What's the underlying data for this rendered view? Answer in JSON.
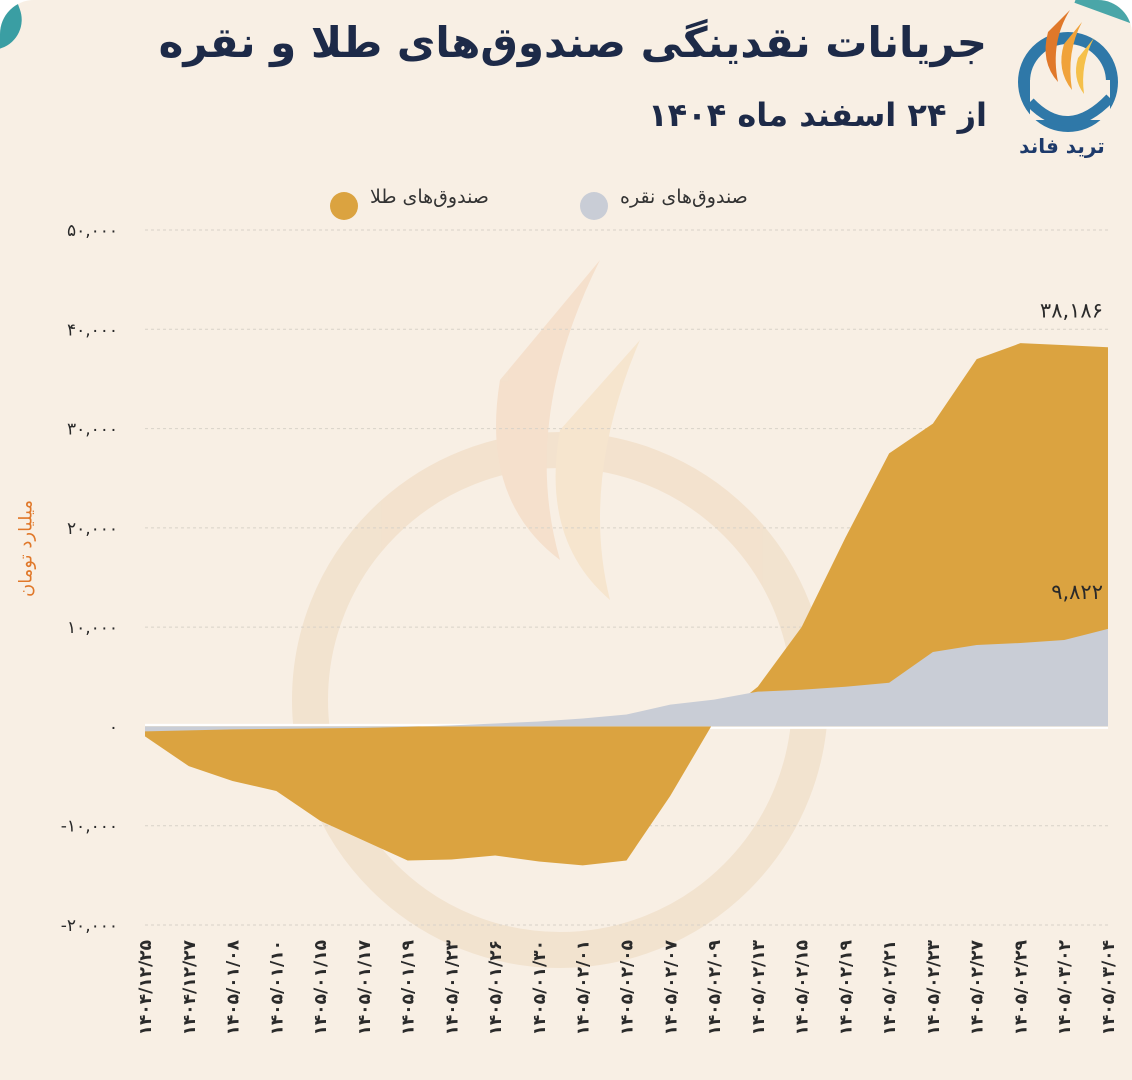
{
  "title": "جریانات نقدینگی صندوق‌های طلا و نقره",
  "subtitle": "از ۲۴ اسفند ماه ۱۴۰۴",
  "brand": "ترید فاند",
  "colors": {
    "gold": "#dba340",
    "silver": "#c9cdd6",
    "title": "#1d2a48",
    "accent": "#e0782a"
  },
  "legend": {
    "gold_label": "صندوق‌های طلا",
    "silver_label": "صندوق‌های نقره"
  },
  "chart_data": {
    "type": "area",
    "ylabel": "میلیارد تومان",
    "ylim": [
      -20000,
      50000
    ],
    "yticks": [
      {
        "value": 50000,
        "label": "۵۰,۰۰۰"
      },
      {
        "value": 40000,
        "label": "۴۰,۰۰۰"
      },
      {
        "value": 30000,
        "label": "۳۰,۰۰۰"
      },
      {
        "value": 20000,
        "label": "۲۰,۰۰۰"
      },
      {
        "value": 10000,
        "label": "۱۰,۰۰۰"
      },
      {
        "value": 0,
        "label": "۰"
      },
      {
        "value": -10000,
        "label": "-۱۰,۰۰۰"
      },
      {
        "value": -20000,
        "label": "-۲۰,۰۰۰"
      }
    ],
    "categories": [
      "۱۴۰۴/۱۲/۲۵",
      "۱۴۰۴/۱۲/۲۷",
      "۱۴۰۵/۰۱/۰۸",
      "۱۴۰۵/۰۱/۱۰",
      "۱۴۰۵/۰۱/۱۵",
      "۱۴۰۵/۰۱/۱۷",
      "۱۴۰۵/۰۱/۱۹",
      "۱۴۰۵/۰۱/۲۳",
      "۱۴۰۵/۰۱/۲۶",
      "۱۴۰۵/۰۱/۳۰",
      "۱۴۰۵/۰۲/۰۱",
      "۱۴۰۵/۰۲/۰۵",
      "۱۴۰۵/۰۲/۰۷",
      "۱۴۰۵/۰۲/۰۹",
      "۱۴۰۵/۰۲/۱۳",
      "۱۴۰۵/۰۲/۱۵",
      "۱۴۰۵/۰۲/۱۹",
      "۱۴۰۵/۰۲/۲۱",
      "۱۴۰۵/۰۲/۲۳",
      "۱۴۰۵/۰۲/۲۷",
      "۱۴۰۵/۰۲/۲۹",
      "۱۴۰۵/۰۳/۰۲",
      "۱۴۰۵/۰۳/۰۴"
    ],
    "series": [
      {
        "name": "صندوق‌های طلا",
        "color": "#dba340",
        "values": [
          -1000,
          -4000,
          -5500,
          -6500,
          -9500,
          -11500,
          -13500,
          -13400,
          -13000,
          -13600,
          -14000,
          -13500,
          -7000,
          500,
          4000,
          10000,
          19000,
          27500,
          30500,
          37000,
          38600,
          38400,
          38186
        ],
        "end_label": "۳۸,۱۸۶"
      },
      {
        "name": "صندوق‌های نقره",
        "color": "#c9cdd6",
        "values": [
          -500,
          -400,
          -300,
          -250,
          -200,
          -150,
          -50,
          100,
          300,
          500,
          800,
          1200,
          2200,
          2700,
          3500,
          3700,
          4000,
          4400,
          7500,
          8200,
          8400,
          8700,
          9822
        ],
        "end_label": "۹,۸۲۲"
      }
    ]
  }
}
